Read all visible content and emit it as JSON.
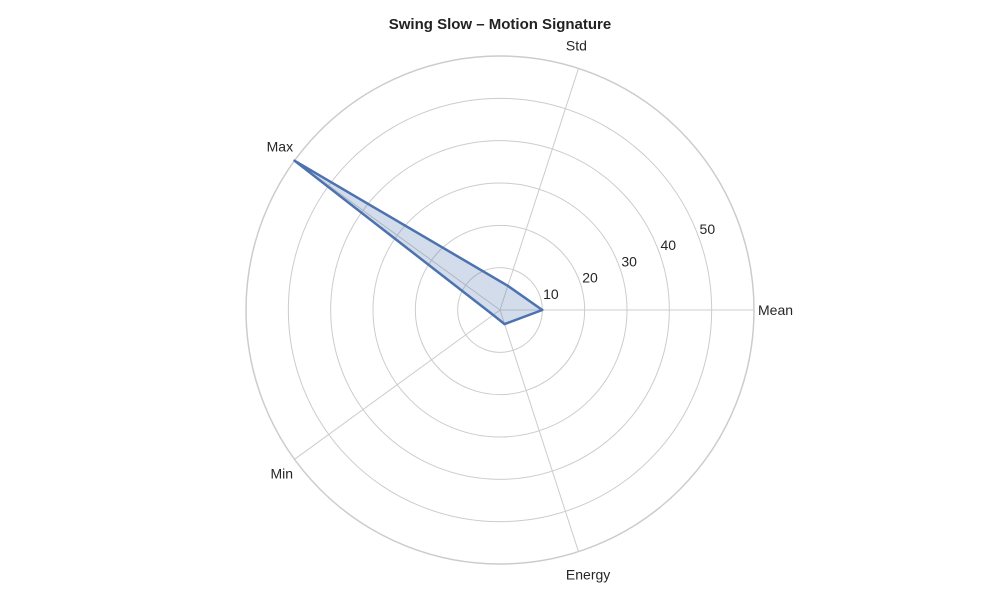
{
  "chart_data": {
    "type": "radar",
    "title": "Swing Slow – Motion Signature",
    "axes": [
      "Mean",
      "Std",
      "Max",
      "Min",
      "Energy"
    ],
    "radial_ticks": [
      10,
      20,
      30,
      40,
      50
    ],
    "rmax": 60,
    "grid": true,
    "series": [
      {
        "values": [
          10,
          6,
          60,
          2,
          3.5
        ]
      }
    ],
    "colors": {
      "series": "#4c72b0",
      "grid": "#cccccc"
    }
  }
}
